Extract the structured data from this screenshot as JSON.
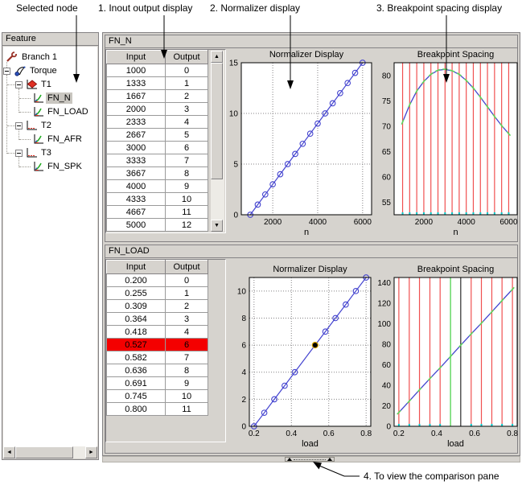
{
  "annotations": {
    "selected_node": "Selected node",
    "callout1": "1. Inout output display",
    "callout2": "2. Normalizer display",
    "callout3": "3. Breakpoint spacing display",
    "callout4": "4. To view the comparison pane"
  },
  "icons": {
    "up_arrow": "▲",
    "down_arrow": "▼",
    "left_arrow": "◄",
    "right_arrow": "►"
  },
  "colors": {
    "panel_gray": "#d6d3ce",
    "line_blue": "#4343cf",
    "breakpoint_red": "#f05050",
    "removed_green": "#5cd65c",
    "selected_line_black": "#000000",
    "selected_row_bg": "#f40000",
    "marker_highlight": "#d8a200",
    "cyan_tick": "#00cccc"
  },
  "tree": {
    "title": "Feature",
    "items": [
      {
        "label": "Branch 1",
        "icon": "wrench-icon",
        "depth": 0,
        "expander": false,
        "selected": false
      },
      {
        "label": "Torque",
        "icon": "feature-icon",
        "depth": 1,
        "expander": true,
        "selected": false
      },
      {
        "label": "T1",
        "icon": "table-filled-icon",
        "depth": 2,
        "expander": true,
        "selected": false
      },
      {
        "label": "FN_N",
        "icon": "normalizer-icon",
        "depth": 3,
        "expander": false,
        "selected": true
      },
      {
        "label": "FN_LOAD",
        "icon": "normalizer-icon",
        "depth": 3,
        "expander": false,
        "selected": false
      },
      {
        "label": "T2",
        "icon": "table-icon",
        "depth": 2,
        "expander": true,
        "selected": false
      },
      {
        "label": "FN_AFR",
        "icon": "normalizer-icon",
        "depth": 3,
        "expander": false,
        "selected": false
      },
      {
        "label": "T3",
        "icon": "table-icon",
        "depth": 2,
        "expander": true,
        "selected": false
      },
      {
        "label": "FN_SPK",
        "icon": "normalizer-icon",
        "depth": 3,
        "expander": false,
        "selected": false
      }
    ]
  },
  "panels": [
    {
      "title": "FN_N",
      "table": {
        "headers": [
          "Input",
          "Output"
        ],
        "rows": [
          [
            "1000",
            "0"
          ],
          [
            "1333",
            "1"
          ],
          [
            "1667",
            "2"
          ],
          [
            "2000",
            "3"
          ],
          [
            "2333",
            "4"
          ],
          [
            "2667",
            "5"
          ],
          [
            "3000",
            "6"
          ],
          [
            "3333",
            "7"
          ],
          [
            "3667",
            "8"
          ],
          [
            "4000",
            "9"
          ],
          [
            "4333",
            "10"
          ],
          [
            "4667",
            "11"
          ],
          [
            "5000",
            "12"
          ]
        ],
        "selected_row": -1,
        "has_scrollbar": true
      }
    },
    {
      "title": "FN_LOAD",
      "table": {
        "headers": [
          "Input",
          "Output"
        ],
        "rows": [
          [
            "0.200",
            "0"
          ],
          [
            "0.255",
            "1"
          ],
          [
            "0.309",
            "2"
          ],
          [
            "0.364",
            "3"
          ],
          [
            "0.418",
            "4"
          ],
          [
            "0.527",
            "6"
          ],
          [
            "0.582",
            "7"
          ],
          [
            "0.636",
            "8"
          ],
          [
            "0.691",
            "9"
          ],
          [
            "0.745",
            "10"
          ],
          [
            "0.800",
            "11"
          ]
        ],
        "selected_row": 5,
        "has_scrollbar": false
      }
    }
  ],
  "chart_data": [
    {
      "id": "fn_n_normalizer",
      "type": "line",
      "title": "Normalizer Display",
      "xlabel": "n",
      "grid": true,
      "xlim": [
        600,
        6400
      ],
      "ylim": [
        0,
        15
      ],
      "xticks": [
        2000,
        4000,
        6000
      ],
      "yticks": [
        0,
        5,
        10,
        15
      ],
      "x": [
        1000,
        1333,
        1667,
        2000,
        2333,
        2667,
        3000,
        3333,
        3667,
        4000,
        4333,
        4667,
        5000,
        5333,
        5667,
        6000
      ],
      "y": [
        0,
        1,
        2,
        3,
        4,
        5,
        6,
        7,
        8,
        9,
        10,
        11,
        12,
        13,
        14,
        15
      ],
      "selected_point": -1
    },
    {
      "id": "fn_n_breakpoints",
      "type": "breakpoint",
      "title": "Breakpoint Spacing",
      "xlabel": "n",
      "grid": false,
      "xlim": [
        600,
        6400
      ],
      "ylim": [
        52.5,
        82.5
      ],
      "xticks": [
        2000,
        4000,
        6000
      ],
      "yticks": [
        55,
        60,
        65,
        70,
        75,
        80
      ],
      "breakpoints": [
        1000,
        1333,
        1667,
        2000,
        2333,
        2667,
        3000,
        3333,
        3667,
        4000,
        4333,
        4667,
        5000,
        5333,
        5667,
        6000
      ],
      "curve_x": [
        1000,
        1333,
        1667,
        2000,
        2333,
        2667,
        3000,
        3333,
        3667,
        4000,
        4333,
        4667,
        5000,
        5333,
        5667,
        6000
      ],
      "curve_y": [
        70.8,
        74.2,
        76.9,
        78.8,
        80.2,
        81.0,
        81.2,
        80.9,
        80.2,
        79.0,
        77.5,
        75.7,
        73.8,
        71.9,
        70.1,
        68.5
      ]
    },
    {
      "id": "fn_load_normalizer",
      "type": "line",
      "title": "Normalizer Display",
      "xlabel": "load",
      "grid": true,
      "xlim": [
        0.175,
        0.825
      ],
      "ylim": [
        0,
        11
      ],
      "xticks": [
        0.2,
        0.4,
        0.6,
        0.8
      ],
      "yticks": [
        0,
        2,
        4,
        6,
        8,
        10
      ],
      "x": [
        0.2,
        0.255,
        0.309,
        0.364,
        0.418,
        0.527,
        0.582,
        0.636,
        0.691,
        0.745,
        0.8
      ],
      "y": [
        0,
        1,
        2,
        3,
        4,
        6,
        7,
        8,
        9,
        10,
        11
      ],
      "selected_point": 5
    },
    {
      "id": "fn_load_breakpoints",
      "type": "breakpoint",
      "title": "Breakpoint Spacing",
      "xlabel": "load",
      "grid": false,
      "xlim": [
        0.175,
        0.825
      ],
      "ylim": [
        0,
        145
      ],
      "xticks": [
        0.2,
        0.4,
        0.6,
        0.8
      ],
      "yticks": [
        0,
        20,
        40,
        60,
        80,
        100,
        120,
        140
      ],
      "breakpoints": [
        0.2,
        0.255,
        0.309,
        0.364,
        0.418,
        0.582,
        0.636,
        0.691,
        0.745,
        0.8
      ],
      "green_line": 0.473,
      "black_line": 0.527,
      "curve_x": [
        0.2,
        0.255,
        0.309,
        0.364,
        0.418,
        0.473,
        0.527,
        0.582,
        0.636,
        0.691,
        0.745,
        0.8
      ],
      "curve_y": [
        13.5,
        24.5,
        35.5,
        46.5,
        57,
        68,
        79,
        90,
        100.5,
        111.5,
        122.5,
        133.5
      ]
    }
  ]
}
